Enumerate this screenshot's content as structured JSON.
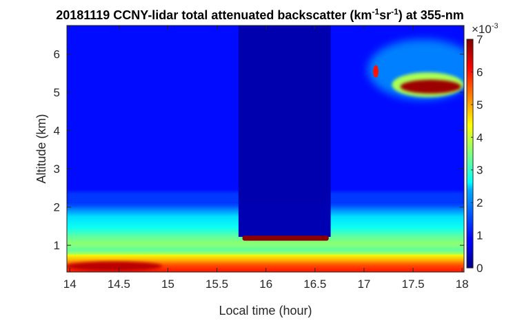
{
  "chart_data": {
    "type": "heatmap",
    "title": {
      "prefix": "20181119 CCNY-lidar total attenuated backscatter (km",
      "sup1": "-1",
      "mid": "sr",
      "sup2": "-1",
      "suffix": ") at 355-nm"
    },
    "xlabel": "Local time (hour)",
    "ylabel": "Altitude (km)",
    "xlim": [
      13.97,
      18.02
    ],
    "ylim": [
      0.3,
      6.75
    ],
    "xticks": [
      14,
      14.5,
      15,
      15.5,
      16,
      16.5,
      17,
      17.5,
      18
    ],
    "xtick_labels": [
      "14",
      "14.5",
      "15",
      "15.5",
      "16",
      "16.5",
      "17",
      "17.5",
      "18"
    ],
    "yticks": [
      1,
      2,
      3,
      4,
      5,
      6
    ],
    "ytick_labels": [
      "1",
      "2",
      "3",
      "4",
      "5",
      "6"
    ],
    "colorbar": {
      "range": [
        0,
        7
      ],
      "ticks": [
        0,
        1,
        2,
        3,
        4,
        5,
        6,
        7
      ],
      "tick_labels": [
        "0",
        "1",
        "2",
        "3",
        "4",
        "5",
        "6",
        "7"
      ],
      "multiplier_base": "×10",
      "multiplier_exp": "-3",
      "colormap": "jet"
    },
    "features": [
      {
        "kind": "boundary_layer_aerosol",
        "x_range": [
          13.97,
          18.02
        ],
        "y_range": [
          0.3,
          0.7
        ],
        "value": 6.0
      },
      {
        "kind": "residual_layer",
        "x_range": [
          13.97,
          18.02
        ],
        "y_range": [
          0.7,
          2.1
        ],
        "value": 3.0
      },
      {
        "kind": "low_cloud",
        "x_range": [
          15.75,
          16.65
        ],
        "y_range": [
          1.12,
          1.25
        ],
        "value": 7.0
      },
      {
        "kind": "cirrus_cloud",
        "x_range": [
          17.1,
          18.02
        ],
        "y_range": [
          4.6,
          5.5
        ],
        "value": 6.5
      },
      {
        "kind": "free_troposphere",
        "x_range": [
          13.97,
          18.02
        ],
        "y_range": [
          2.1,
          6.75
        ],
        "value": 0.8
      }
    ]
  }
}
